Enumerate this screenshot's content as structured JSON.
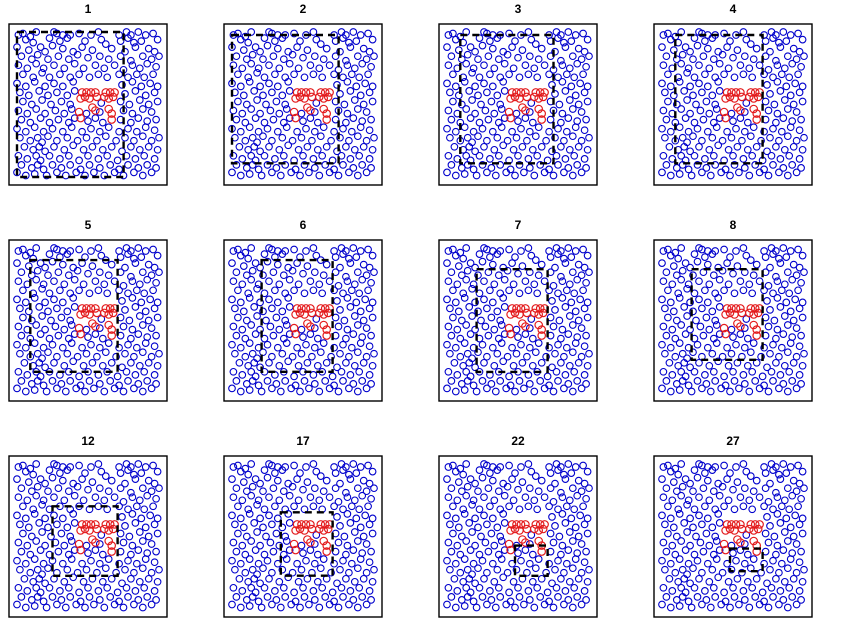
{
  "chart_data": {
    "type": "scatter",
    "colors": {
      "background": "#0000cc",
      "cluster": "#e31a1c",
      "window": "#000000"
    },
    "xlim": [
      0,
      1
    ],
    "ylim": [
      0,
      1
    ],
    "panels": [
      {
        "label": "1",
        "window": {
          "x0": 0.02,
          "x1": 0.74,
          "y0": 0.02,
          "y1": 0.98
        }
      },
      {
        "label": "2",
        "window": {
          "x0": 0.02,
          "x1": 0.74,
          "y0": 0.11,
          "y1": 0.96
        }
      },
      {
        "label": "3",
        "window": {
          "x0": 0.11,
          "x1": 0.74,
          "y0": 0.11,
          "y1": 0.96
        }
      },
      {
        "label": "4",
        "window": {
          "x0": 0.11,
          "x1": 0.7,
          "y0": 0.11,
          "y1": 0.96
        }
      },
      {
        "label": "5",
        "window": {
          "x0": 0.11,
          "x1": 0.7,
          "y0": 0.16,
          "y1": 0.9
        }
      },
      {
        "label": "6",
        "window": {
          "x0": 0.22,
          "x1": 0.7,
          "y0": 0.16,
          "y1": 0.9
        }
      },
      {
        "label": "7",
        "window": {
          "x0": 0.22,
          "x1": 0.7,
          "y0": 0.16,
          "y1": 0.84
        }
      },
      {
        "label": "8",
        "window": {
          "x0": 0.22,
          "x1": 0.7,
          "y0": 0.24,
          "y1": 0.84
        }
      },
      {
        "label": "12",
        "window": {
          "x0": 0.26,
          "x1": 0.7,
          "y0": 0.24,
          "y1": 0.7
        }
      },
      {
        "label": "17",
        "window": {
          "x0": 0.35,
          "x1": 0.7,
          "y0": 0.24,
          "y1": 0.66
        }
      },
      {
        "label": "22",
        "window": {
          "x0": 0.48,
          "x1": 0.7,
          "y0": 0.24,
          "y1": 0.44
        }
      },
      {
        "label": "27",
        "window": {
          "x0": 0.48,
          "x1": 0.7,
          "y0": 0.27,
          "y1": 0.42
        }
      }
    ],
    "cluster_points": [
      [
        0.46,
        0.58
      ],
      [
        0.49,
        0.58
      ],
      [
        0.52,
        0.58
      ],
      [
        0.55,
        0.58
      ],
      [
        0.62,
        0.58
      ],
      [
        0.65,
        0.58
      ],
      [
        0.68,
        0.58
      ],
      [
        0.45,
        0.54
      ],
      [
        0.48,
        0.55
      ],
      [
        0.51,
        0.54
      ],
      [
        0.56,
        0.55
      ],
      [
        0.61,
        0.55
      ],
      [
        0.64,
        0.54
      ],
      [
        0.67,
        0.55
      ],
      [
        0.44,
        0.45
      ],
      [
        0.53,
        0.48
      ],
      [
        0.55,
        0.46
      ],
      [
        0.64,
        0.47
      ],
      [
        0.66,
        0.44
      ],
      [
        0.45,
        0.41
      ],
      [
        0.66,
        0.4
      ]
    ],
    "background_points": [
      [
        0.03,
        0.96
      ],
      [
        0.06,
        0.97
      ],
      [
        0.11,
        0.95
      ],
      [
        0.15,
        0.98
      ],
      [
        0.27,
        0.98
      ],
      [
        0.29,
        0.97
      ],
      [
        0.33,
        0.96
      ],
      [
        0.38,
        0.96
      ],
      [
        0.44,
        0.97
      ],
      [
        0.52,
        0.96
      ],
      [
        0.57,
        0.98
      ],
      [
        0.71,
        0.96
      ],
      [
        0.76,
        0.98
      ],
      [
        0.79,
        0.96
      ],
      [
        0.84,
        0.98
      ],
      [
        0.89,
        0.96
      ],
      [
        0.94,
        0.97
      ],
      [
        0.08,
        0.93
      ],
      [
        0.13,
        0.91
      ],
      [
        0.24,
        0.94
      ],
      [
        0.31,
        0.92
      ],
      [
        0.36,
        0.94
      ],
      [
        0.48,
        0.92
      ],
      [
        0.59,
        0.93
      ],
      [
        0.62,
        0.9
      ],
      [
        0.72,
        0.92
      ],
      [
        0.77,
        0.94
      ],
      [
        0.81,
        0.91
      ],
      [
        0.86,
        0.92
      ],
      [
        0.97,
        0.93
      ],
      [
        0.02,
        0.88
      ],
      [
        0.1,
        0.86
      ],
      [
        0.18,
        0.88
      ],
      [
        0.21,
        0.85
      ],
      [
        0.26,
        0.89
      ],
      [
        0.33,
        0.87
      ],
      [
        0.4,
        0.85
      ],
      [
        0.46,
        0.88
      ],
      [
        0.53,
        0.86
      ],
      [
        0.66,
        0.87
      ],
      [
        0.75,
        0.85
      ],
      [
        0.82,
        0.88
      ],
      [
        0.91,
        0.87
      ],
      [
        0.95,
        0.85
      ],
      [
        0.05,
        0.82
      ],
      [
        0.12,
        0.8
      ],
      [
        0.16,
        0.83
      ],
      [
        0.23,
        0.8
      ],
      [
        0.3,
        0.82
      ],
      [
        0.37,
        0.8
      ],
      [
        0.43,
        0.83
      ],
      [
        0.5,
        0.81
      ],
      [
        0.58,
        0.82
      ],
      [
        0.64,
        0.8
      ],
      [
        0.72,
        0.82
      ],
      [
        0.79,
        0.79
      ],
      [
        0.87,
        0.82
      ],
      [
        0.93,
        0.8
      ],
      [
        0.98,
        0.82
      ],
      [
        0.03,
        0.76
      ],
      [
        0.09,
        0.74
      ],
      [
        0.15,
        0.77
      ],
      [
        0.2,
        0.74
      ],
      [
        0.27,
        0.76
      ],
      [
        0.34,
        0.74
      ],
      [
        0.41,
        0.77
      ],
      [
        0.47,
        0.74
      ],
      [
        0.55,
        0.76
      ],
      [
        0.61,
        0.74
      ],
      [
        0.68,
        0.76
      ],
      [
        0.74,
        0.73
      ],
      [
        0.8,
        0.76
      ],
      [
        0.85,
        0.74
      ],
      [
        0.9,
        0.77
      ],
      [
        0.96,
        0.75
      ],
      [
        0.06,
        0.7
      ],
      [
        0.13,
        0.68
      ],
      [
        0.19,
        0.71
      ],
      [
        0.24,
        0.68
      ],
      [
        0.31,
        0.7
      ],
      [
        0.38,
        0.68
      ],
      [
        0.44,
        0.7
      ],
      [
        0.51,
        0.68
      ],
      [
        0.57,
        0.7
      ],
      [
        0.63,
        0.68
      ],
      [
        0.71,
        0.7
      ],
      [
        0.77,
        0.68
      ],
      [
        0.83,
        0.7
      ],
      [
        0.88,
        0.68
      ],
      [
        0.94,
        0.7
      ],
      [
        0.02,
        0.64
      ],
      [
        0.08,
        0.62
      ],
      [
        0.14,
        0.65
      ],
      [
        0.21,
        0.62
      ],
      [
        0.27,
        0.64
      ],
      [
        0.33,
        0.62
      ],
      [
        0.4,
        0.65
      ],
      [
        0.73,
        0.63
      ],
      [
        0.8,
        0.65
      ],
      [
        0.86,
        0.62
      ],
      [
        0.92,
        0.64
      ],
      [
        0.97,
        0.62
      ],
      [
        0.04,
        0.58
      ],
      [
        0.1,
        0.56
      ],
      [
        0.17,
        0.59
      ],
      [
        0.23,
        0.56
      ],
      [
        0.29,
        0.58
      ],
      [
        0.36,
        0.56
      ],
      [
        0.41,
        0.59
      ],
      [
        0.75,
        0.57
      ],
      [
        0.82,
        0.59
      ],
      [
        0.89,
        0.56
      ],
      [
        0.95,
        0.58
      ],
      [
        0.06,
        0.52
      ],
      [
        0.12,
        0.5
      ],
      [
        0.19,
        0.53
      ],
      [
        0.25,
        0.5
      ],
      [
        0.32,
        0.52
      ],
      [
        0.38,
        0.5
      ],
      [
        0.59,
        0.51
      ],
      [
        0.72,
        0.52
      ],
      [
        0.78,
        0.5
      ],
      [
        0.85,
        0.53
      ],
      [
        0.91,
        0.5
      ],
      [
        0.97,
        0.52
      ],
      [
        0.03,
        0.46
      ],
      [
        0.09,
        0.44
      ],
      [
        0.15,
        0.47
      ],
      [
        0.21,
        0.44
      ],
      [
        0.28,
        0.46
      ],
      [
        0.34,
        0.44
      ],
      [
        0.39,
        0.47
      ],
      [
        0.49,
        0.44
      ],
      [
        0.58,
        0.45
      ],
      [
        0.74,
        0.46
      ],
      [
        0.8,
        0.44
      ],
      [
        0.87,
        0.47
      ],
      [
        0.93,
        0.45
      ],
      [
        0.05,
        0.4
      ],
      [
        0.11,
        0.38
      ],
      [
        0.18,
        0.41
      ],
      [
        0.24,
        0.38
      ],
      [
        0.3,
        0.4
      ],
      [
        0.37,
        0.38
      ],
      [
        0.41,
        0.41
      ],
      [
        0.5,
        0.39
      ],
      [
        0.55,
        0.41
      ],
      [
        0.6,
        0.38
      ],
      [
        0.72,
        0.4
      ],
      [
        0.79,
        0.38
      ],
      [
        0.84,
        0.41
      ],
      [
        0.9,
        0.39
      ],
      [
        0.96,
        0.4
      ],
      [
        0.02,
        0.34
      ],
      [
        0.08,
        0.32
      ],
      [
        0.14,
        0.35
      ],
      [
        0.2,
        0.32
      ],
      [
        0.26,
        0.34
      ],
      [
        0.33,
        0.32
      ],
      [
        0.39,
        0.35
      ],
      [
        0.46,
        0.32
      ],
      [
        0.52,
        0.34
      ],
      [
        0.58,
        0.32
      ],
      [
        0.64,
        0.35
      ],
      [
        0.71,
        0.32
      ],
      [
        0.77,
        0.34
      ],
      [
        0.83,
        0.32
      ],
      [
        0.89,
        0.35
      ],
      [
        0.95,
        0.33
      ],
      [
        0.04,
        0.28
      ],
      [
        0.11,
        0.26
      ],
      [
        0.16,
        0.28
      ],
      [
        0.19,
        0.25
      ],
      [
        0.23,
        0.29
      ],
      [
        0.29,
        0.26
      ],
      [
        0.36,
        0.28
      ],
      [
        0.43,
        0.26
      ],
      [
        0.49,
        0.28
      ],
      [
        0.56,
        0.26
      ],
      [
        0.62,
        0.29
      ],
      [
        0.69,
        0.26
      ],
      [
        0.75,
        0.28
      ],
      [
        0.81,
        0.26
      ],
      [
        0.87,
        0.29
      ],
      [
        0.93,
        0.26
      ],
      [
        0.98,
        0.28
      ],
      [
        0.07,
        0.22
      ],
      [
        0.13,
        0.2
      ],
      [
        0.17,
        0.22
      ],
      [
        0.21,
        0.19
      ],
      [
        0.27,
        0.22
      ],
      [
        0.34,
        0.2
      ],
      [
        0.4,
        0.23
      ],
      [
        0.47,
        0.2
      ],
      [
        0.53,
        0.22
      ],
      [
        0.6,
        0.2
      ],
      [
        0.66,
        0.22
      ],
      [
        0.73,
        0.19
      ],
      [
        0.79,
        0.22
      ],
      [
        0.85,
        0.2
      ],
      [
        0.91,
        0.22
      ],
      [
        0.97,
        0.2
      ],
      [
        0.03,
        0.16
      ],
      [
        0.09,
        0.14
      ],
      [
        0.15,
        0.16
      ],
      [
        0.18,
        0.13
      ],
      [
        0.24,
        0.16
      ],
      [
        0.31,
        0.14
      ],
      [
        0.37,
        0.16
      ],
      [
        0.44,
        0.13
      ],
      [
        0.5,
        0.16
      ],
      [
        0.57,
        0.14
      ],
      [
        0.63,
        0.16
      ],
      [
        0.7,
        0.13
      ],
      [
        0.76,
        0.16
      ],
      [
        0.82,
        0.14
      ],
      [
        0.88,
        0.16
      ],
      [
        0.95,
        0.14
      ],
      [
        0.05,
        0.1
      ],
      [
        0.12,
        0.08
      ],
      [
        0.16,
        0.1
      ],
      [
        0.2,
        0.07
      ],
      [
        0.26,
        0.1
      ],
      [
        0.32,
        0.08
      ],
      [
        0.38,
        0.1
      ],
      [
        0.45,
        0.07
      ],
      [
        0.51,
        0.1
      ],
      [
        0.58,
        0.08
      ],
      [
        0.65,
        0.1
      ],
      [
        0.71,
        0.07
      ],
      [
        0.77,
        0.1
      ],
      [
        0.84,
        0.08
      ],
      [
        0.9,
        0.1
      ],
      [
        0.96,
        0.08
      ],
      [
        0.02,
        0.05
      ],
      [
        0.08,
        0.03
      ],
      [
        0.14,
        0.04
      ],
      [
        0.22,
        0.03
      ],
      [
        0.29,
        0.05
      ],
      [
        0.35,
        0.03
      ],
      [
        0.42,
        0.05
      ],
      [
        0.48,
        0.03
      ],
      [
        0.54,
        0.05
      ],
      [
        0.61,
        0.03
      ],
      [
        0.68,
        0.05
      ],
      [
        0.74,
        0.03
      ],
      [
        0.81,
        0.05
      ],
      [
        0.87,
        0.03
      ],
      [
        0.93,
        0.05
      ]
    ]
  }
}
